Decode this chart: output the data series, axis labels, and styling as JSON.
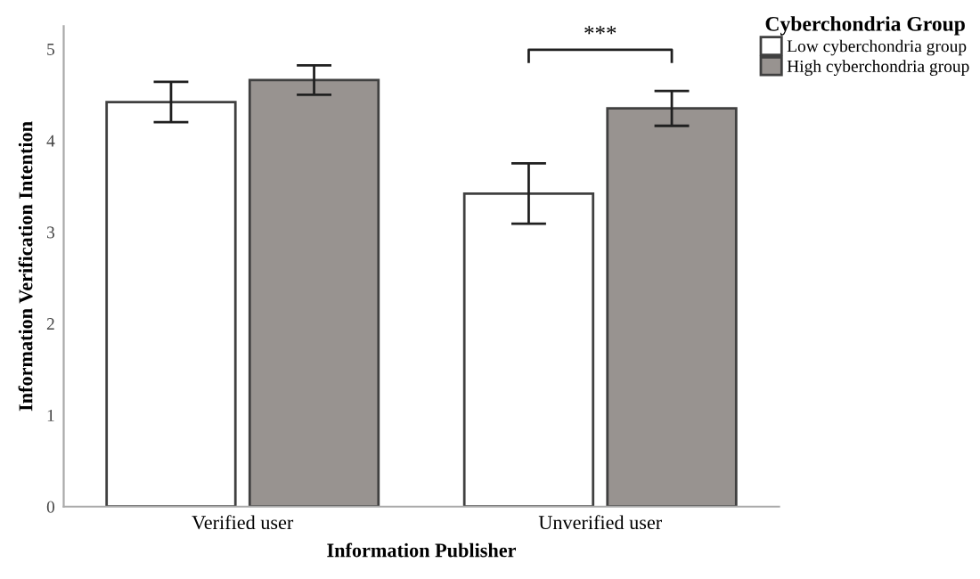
{
  "chart_data": {
    "type": "bar",
    "xlabel": "Information Publisher",
    "ylabel": "Information Verification Intention",
    "legend_title": "Cyberchondria Group",
    "categories": [
      "Verified user",
      "Unverified user"
    ],
    "series": [
      {
        "name": "Low cyberchondria group",
        "color": "#ffffff",
        "values": [
          4.42,
          3.42
        ],
        "errors": [
          0.22,
          0.33
        ]
      },
      {
        "name": "High cyberchondria group",
        "color": "#989390",
        "values": [
          4.66,
          4.35
        ],
        "errors": [
          0.16,
          0.19
        ]
      }
    ],
    "ylim": [
      0,
      5.25
    ],
    "yticks": [
      0,
      1,
      2,
      3,
      4,
      5
    ],
    "grid": false,
    "legend": "top right",
    "annotations": [
      "***"
    ]
  }
}
